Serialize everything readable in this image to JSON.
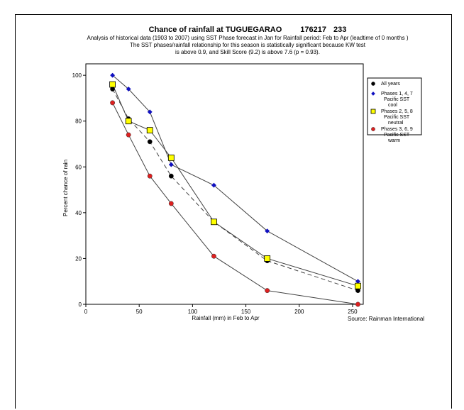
{
  "chart_data": {
    "type": "line",
    "title": "Chance of rainfall at TUGUEGARAO",
    "station_id": "176217",
    "station_num": "233",
    "subtitle_lines": [
      "Analysis of historical data (1903 to 2007) using SST Phase forecast in Jan for Rainfall period: Feb to Apr (leadtime of 0 months )",
      "The SST phases/rainfall relationship for this season is statistically significant because KW test",
      "is above 0.9, and Skill Score (9.2) is above 7.6 (p = 0.93)."
    ],
    "xlabel": "Rainfall (mm) in Feb to Apr",
    "ylabel": "Percent chance of rain",
    "source": "Source: Rainman International",
    "xlim": [
      0,
      260
    ],
    "ylim": [
      0,
      105
    ],
    "xticks": [
      0,
      50,
      100,
      150,
      200,
      250
    ],
    "yticks": [
      0,
      20,
      40,
      60,
      80,
      100
    ],
    "legend_position": "top-right",
    "series": [
      {
        "name": "All years",
        "marker": "circle",
        "color": "#000000",
        "line": "dashed",
        "x": [
          25,
          40,
          60,
          80,
          120,
          170,
          255
        ],
        "y": [
          94,
          81,
          71,
          56,
          36,
          19,
          6
        ]
      },
      {
        "name": "Phases 1, 4, 7 Pacific SST cool",
        "legend_lines": [
          "Phases 1, 4, 7",
          "Pacific SST",
          "cool"
        ],
        "marker": "diamond",
        "color": "#1010c0",
        "line": "solid",
        "x": [
          25,
          40,
          60,
          80,
          120,
          170,
          255
        ],
        "y": [
          100,
          94,
          84,
          61,
          52,
          32,
          10
        ]
      },
      {
        "name": "Phases 2, 5, 8 Pacific SST neutral",
        "legend_lines": [
          "Phases 2, 5, 8",
          "Pacific SST",
          "neutral"
        ],
        "marker": "square",
        "color": "#ffff00",
        "line": "solid",
        "x": [
          25,
          40,
          60,
          80,
          120,
          170,
          255
        ],
        "y": [
          96,
          80,
          76,
          64,
          36,
          20,
          8
        ]
      },
      {
        "name": "Phases 3, 6, 9 Pacific SST warm",
        "legend_lines": [
          "Phases 3, 6, 9",
          "Pacific SST",
          "warm"
        ],
        "marker": "circle",
        "color": "#dd2020",
        "line": "solid",
        "x": [
          25,
          40,
          60,
          80,
          120,
          170,
          255
        ],
        "y": [
          88,
          74,
          56,
          44,
          21,
          6,
          0
        ]
      }
    ]
  }
}
